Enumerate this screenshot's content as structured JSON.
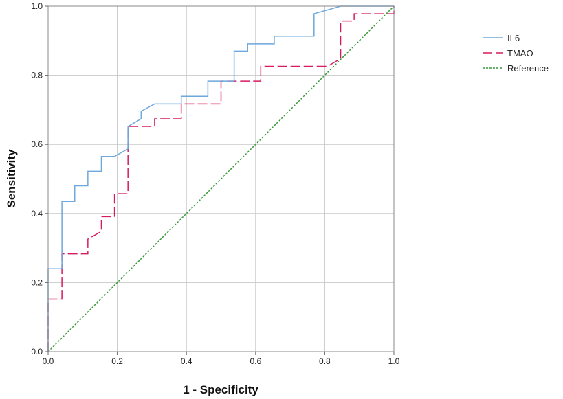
{
  "chart_data": {
    "type": "line",
    "title": "",
    "xlabel": "1 - Specificity",
    "ylabel": "Sensitivity",
    "xlim": [
      0,
      1
    ],
    "ylim": [
      0,
      1
    ],
    "xticks": [
      "0.0",
      "0.2",
      "0.4",
      "0.6",
      "0.8",
      "1.0"
    ],
    "yticks": [
      "0.0",
      "0.2",
      "0.4",
      "0.6",
      "0.8",
      "1.0"
    ],
    "grid": true,
    "legend_position": "top-right",
    "series": [
      {
        "name": "IL6",
        "color": "#6fa8dc",
        "dash": "solid",
        "points": [
          [
            0.0,
            0.0
          ],
          [
            0.0,
            0.24
          ],
          [
            0.04,
            0.24
          ],
          [
            0.04,
            0.435
          ],
          [
            0.077,
            0.435
          ],
          [
            0.077,
            0.48
          ],
          [
            0.115,
            0.48
          ],
          [
            0.115,
            0.522
          ],
          [
            0.154,
            0.522
          ],
          [
            0.154,
            0.565
          ],
          [
            0.192,
            0.565
          ],
          [
            0.231,
            0.587
          ],
          [
            0.231,
            0.652
          ],
          [
            0.269,
            0.674
          ],
          [
            0.269,
            0.696
          ],
          [
            0.308,
            0.717
          ],
          [
            0.385,
            0.717
          ],
          [
            0.385,
            0.739
          ],
          [
            0.462,
            0.739
          ],
          [
            0.462,
            0.783
          ],
          [
            0.538,
            0.783
          ],
          [
            0.538,
            0.87
          ],
          [
            0.577,
            0.87
          ],
          [
            0.577,
            0.891
          ],
          [
            0.654,
            0.891
          ],
          [
            0.654,
            0.913
          ],
          [
            0.769,
            0.913
          ],
          [
            0.769,
            0.978
          ],
          [
            0.846,
            1.0
          ],
          [
            1.0,
            1.0
          ]
        ]
      },
      {
        "name": "TMAO",
        "color": "#d81b60",
        "dash": "dashed",
        "points": [
          [
            0.0,
            0.0
          ],
          [
            0.0,
            0.152
          ],
          [
            0.04,
            0.152
          ],
          [
            0.04,
            0.283
          ],
          [
            0.115,
            0.283
          ],
          [
            0.115,
            0.326
          ],
          [
            0.154,
            0.348
          ],
          [
            0.154,
            0.391
          ],
          [
            0.192,
            0.391
          ],
          [
            0.192,
            0.457
          ],
          [
            0.231,
            0.457
          ],
          [
            0.231,
            0.652
          ],
          [
            0.308,
            0.652
          ],
          [
            0.308,
            0.674
          ],
          [
            0.385,
            0.674
          ],
          [
            0.385,
            0.717
          ],
          [
            0.5,
            0.717
          ],
          [
            0.5,
            0.783
          ],
          [
            0.615,
            0.783
          ],
          [
            0.615,
            0.826
          ],
          [
            0.808,
            0.826
          ],
          [
            0.846,
            0.848
          ],
          [
            0.846,
            0.957
          ],
          [
            0.885,
            0.957
          ],
          [
            0.885,
            0.978
          ],
          [
            1.0,
            0.978
          ],
          [
            1.0,
            1.0
          ]
        ]
      },
      {
        "name": "Reference",
        "color": "#3a9a3a",
        "dash": "dotted",
        "points": [
          [
            0.0,
            0.0
          ],
          [
            1.0,
            1.0
          ]
        ]
      }
    ]
  }
}
